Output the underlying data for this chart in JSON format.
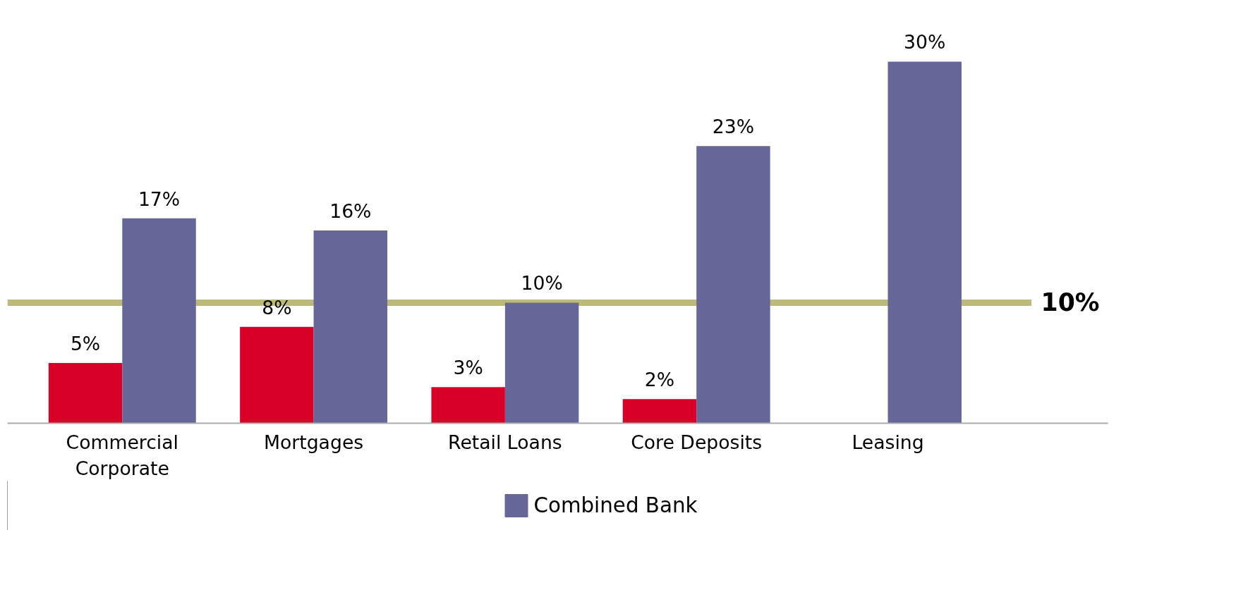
{
  "chart_data": {
    "type": "bar",
    "categories": [
      "Commercial\nCorporate",
      "Mortgages",
      "Retail Loans",
      "Core Deposits",
      "Leasing"
    ],
    "series": [
      {
        "color": "#d90027",
        "values": [
          5,
          8,
          3,
          2,
          null
        ],
        "value_labels": [
          "5%",
          "8%",
          "3%",
          "2%",
          null
        ]
      },
      {
        "name": "Combined Bank",
        "color": "#666699",
        "values": [
          17,
          16,
          10,
          23,
          30
        ],
        "value_labels": [
          "17%",
          "16%",
          "10%",
          "23%",
          "30%"
        ]
      }
    ],
    "ref_lines": [
      {
        "axis": "y",
        "value": 10,
        "label": "10%",
        "color": "#bdb97a"
      }
    ],
    "legend": "bottom",
    "grid": false,
    "tick_labels": "x"
  }
}
